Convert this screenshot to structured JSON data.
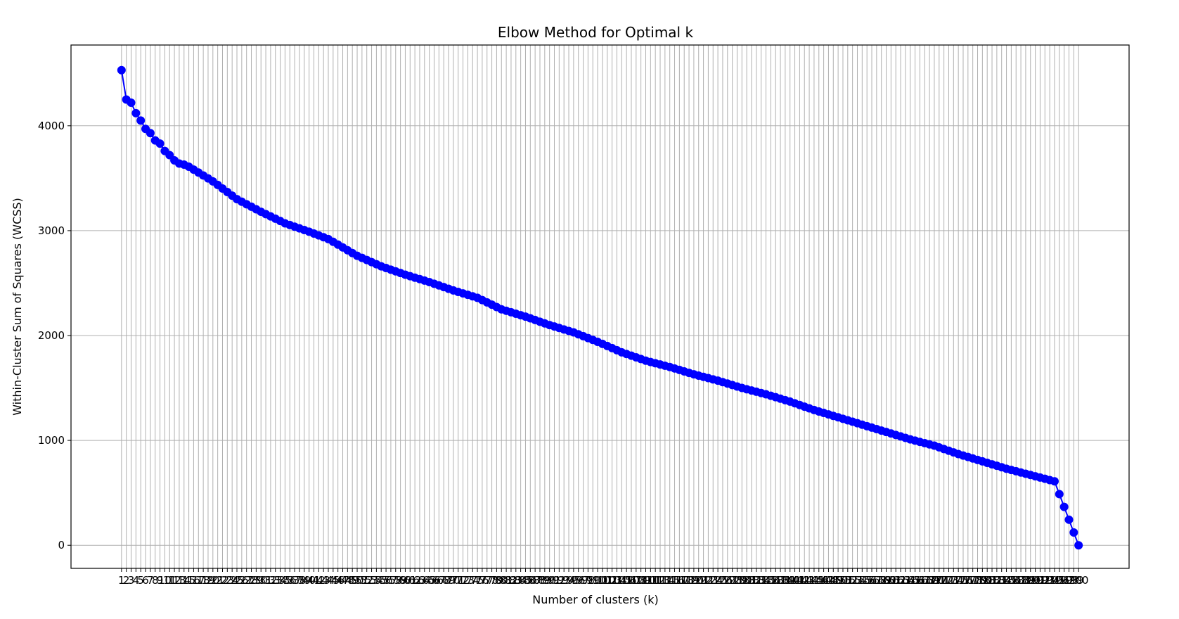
{
  "chart_data": {
    "type": "line",
    "title": "Elbow Method for Optimal k",
    "xlabel": "Number of clusters (k)",
    "ylabel": "Within-Cluster Sum of Squares (WCSS)",
    "xlim": [
      -9.5,
      210.5
    ],
    "ylim": [
      -220,
      4770
    ],
    "x_tick_start": 1,
    "x_tick_end": 200,
    "y_ticks": [
      0,
      1000,
      2000,
      3000,
      4000
    ],
    "grid": true,
    "line_color": "#0000ff",
    "marker": "circle",
    "anchor_points": [
      [
        1,
        4530
      ],
      [
        2,
        4250
      ],
      [
        3,
        4220
      ],
      [
        4,
        4120
      ],
      [
        5,
        4050
      ],
      [
        6,
        3970
      ],
      [
        7,
        3930
      ],
      [
        8,
        3860
      ],
      [
        9,
        3830
      ],
      [
        10,
        3760
      ],
      [
        11,
        3720
      ],
      [
        12,
        3670
      ],
      [
        13,
        3640
      ],
      [
        14,
        3630
      ],
      [
        15,
        3610
      ],
      [
        20,
        3470
      ],
      [
        25,
        3300
      ],
      [
        30,
        3180
      ],
      [
        35,
        3070
      ],
      [
        40,
        2990
      ],
      [
        44,
        2920
      ],
      [
        50,
        2760
      ],
      [
        55,
        2660
      ],
      [
        60,
        2580
      ],
      [
        65,
        2510
      ],
      [
        70,
        2430
      ],
      [
        75,
        2360
      ],
      [
        80,
        2250
      ],
      [
        85,
        2180
      ],
      [
        90,
        2100
      ],
      [
        95,
        2030
      ],
      [
        100,
        1940
      ],
      [
        105,
        1840
      ],
      [
        110,
        1760
      ],
      [
        115,
        1700
      ],
      [
        120,
        1630
      ],
      [
        125,
        1570
      ],
      [
        130,
        1500
      ],
      [
        135,
        1440
      ],
      [
        140,
        1370
      ],
      [
        145,
        1290
      ],
      [
        150,
        1220
      ],
      [
        155,
        1150
      ],
      [
        160,
        1080
      ],
      [
        165,
        1010
      ],
      [
        170,
        950
      ],
      [
        175,
        870
      ],
      [
        180,
        800
      ],
      [
        185,
        730
      ],
      [
        190,
        670
      ],
      [
        195,
        610
      ],
      [
        200,
        0
      ]
    ]
  }
}
